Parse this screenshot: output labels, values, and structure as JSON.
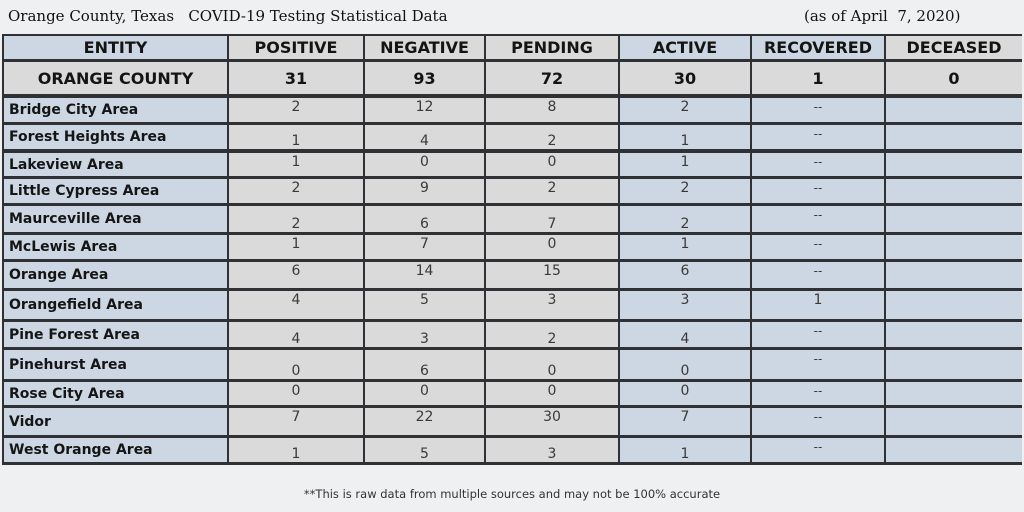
{
  "header": {
    "title": "Orange County, Texas   COVID-19 Testing Statistical Data",
    "as_of": "(as of April  7, 2020)"
  },
  "columns": [
    "ENTITY",
    "POSITIVE",
    "NEGATIVE",
    "PENDING",
    "ACTIVE",
    "RECOVERED",
    "DECEASED"
  ],
  "county_row": [
    "ORANGE COUNTY",
    "31",
    "93",
    "72",
    "30",
    "1",
    "0"
  ],
  "rows": [
    [
      "Bridge City Area",
      "2",
      "12",
      "8",
      "2",
      "--",
      ""
    ],
    [
      "Forest Heights Area",
      "1",
      "4",
      "2",
      "1",
      "--",
      ""
    ],
    [
      "Lakeview Area",
      "1",
      "0",
      "0",
      "1",
      "--",
      ""
    ],
    [
      "Little Cypress Area",
      "2",
      "9",
      "2",
      "2",
      "--",
      ""
    ],
    [
      "Maurceville Area",
      "2",
      "6",
      "7",
      "2",
      "--",
      ""
    ],
    [
      "McLewis Area",
      "1",
      "7",
      "0",
      "1",
      "--",
      ""
    ],
    [
      "Orange Area",
      "6",
      "14",
      "15",
      "6",
      "--",
      ""
    ],
    [
      "Orangefield Area",
      "4",
      "5",
      "3",
      "3",
      "1",
      ""
    ],
    [
      "Pine Forest Area",
      "4",
      "3",
      "2",
      "4",
      "--",
      ""
    ],
    [
      "Pinehurst Area",
      "0",
      "6",
      "0",
      "0",
      "--",
      ""
    ],
    [
      "Rose City Area",
      "0",
      "0",
      "0",
      "0",
      "--",
      ""
    ],
    [
      "Vidor",
      "7",
      "22",
      "30",
      "7",
      "--",
      ""
    ],
    [
      "West Orange Area",
      "1",
      "5",
      "3",
      "1",
      "--",
      ""
    ]
  ],
  "footer": "**This is raw data from multiple sources and may not be 100% accurate",
  "colors": {
    "page_bg": "#eff0f1",
    "table_border": "#2f3134",
    "blue_cell": "#cdd7e3",
    "grey_cell": "#dadada"
  }
}
